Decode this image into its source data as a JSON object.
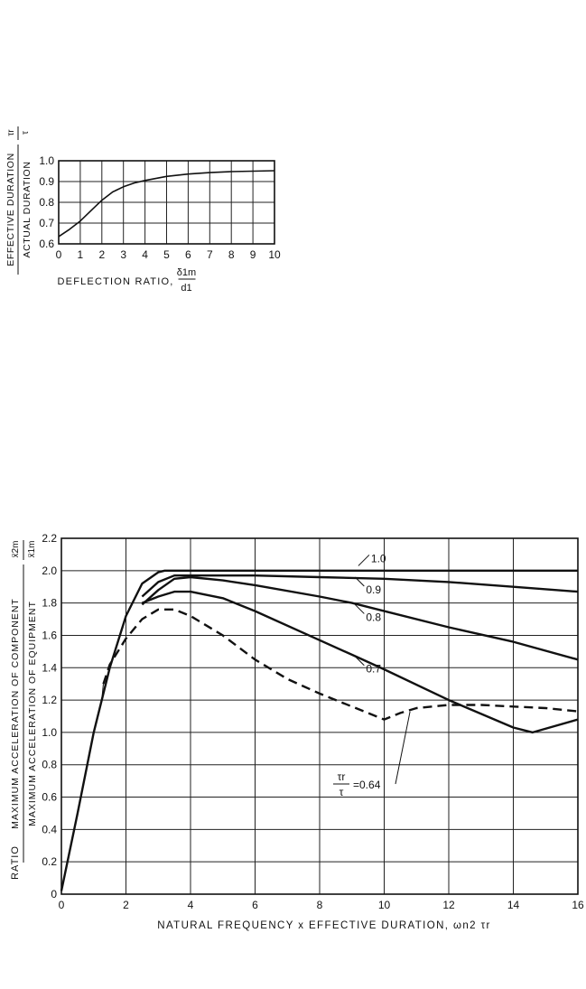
{
  "chart_data": [
    {
      "type": "line",
      "title": "",
      "xlabel": "DEFLECTION RATIO,",
      "xlabel_fraction": {
        "numerator": "δ1m",
        "denominator": "d1"
      },
      "ylabel_numerator": "EFFECTIVE DURATION",
      "ylabel_denominator": "ACTUAL DURATION",
      "ylabel_ratio": {
        "numerator": "τr",
        "denominator": "τ"
      },
      "xlim": [
        0,
        10
      ],
      "ylim": [
        0.6,
        1.0
      ],
      "x_ticks": [
        0,
        1,
        2,
        3,
        4,
        5,
        6,
        7,
        8,
        9,
        10
      ],
      "x_tick_labels": [
        "0",
        "1",
        "2",
        "3",
        "4",
        "5",
        "6",
        "7",
        "8",
        "9",
        "10"
      ],
      "y_ticks": [
        0.6,
        0.7,
        0.8,
        0.9,
        1.0
      ],
      "y_tick_labels": [
        "0.6",
        "0.7",
        "0.8",
        "0.9",
        "1.0"
      ],
      "grid": true,
      "series": [
        {
          "style": "solid",
          "x": [
            0,
            0.5,
            1,
            1.5,
            2,
            2.5,
            3,
            3.5,
            4,
            5,
            6,
            7,
            8,
            9,
            10
          ],
          "y": [
            0.635,
            0.67,
            0.71,
            0.76,
            0.81,
            0.85,
            0.875,
            0.893,
            0.905,
            0.925,
            0.936,
            0.943,
            0.948,
            0.95,
            0.952
          ]
        }
      ]
    },
    {
      "type": "line",
      "title": "",
      "xlabel": "NATURAL FREQUENCY x EFFECTIVE DURATION, ωn2 τr",
      "ylabel_prefix": "RATIO",
      "ylabel_numerator": "MAXIMUM ACCELERATION OF COMPONENT",
      "ylabel_denominator": "MAXIMUM ACCELERATION OF EQUIPMENT",
      "ylabel_ratio": {
        "numerator": "ẍ2m",
        "denominator": "ẍ1m"
      },
      "xlim": [
        0,
        16
      ],
      "ylim": [
        0,
        2.2
      ],
      "x_ticks": [
        0,
        2,
        4,
        6,
        8,
        10,
        12,
        14,
        16
      ],
      "x_tick_labels": [
        "0",
        "2",
        "4",
        "6",
        "8",
        "10",
        "12",
        "14",
        "16"
      ],
      "y_ticks": [
        0,
        0.2,
        0.4,
        0.6,
        0.8,
        1.0,
        1.2,
        1.4,
        1.6,
        1.8,
        2.0,
        2.2
      ],
      "y_tick_labels": [
        "0",
        "0.2",
        "0.4",
        "0.6",
        "0.8",
        "1.0",
        "1.2",
        "1.4",
        "1.6",
        "1.8",
        "2.0",
        "2.2"
      ],
      "grid": true,
      "series": [
        {
          "name": "1.0",
          "style": "solid",
          "x": [
            0,
            0.5,
            1,
            1.5,
            2,
            2.5,
            3,
            3.2,
            4,
            6,
            8,
            10,
            12,
            14,
            16
          ],
          "y": [
            0.02,
            0.5,
            1.0,
            1.4,
            1.72,
            1.92,
            1.99,
            2.0,
            2.0,
            2.0,
            2.0,
            2.0,
            2.0,
            2.0,
            2.0
          ],
          "label_at": [
            9.2,
            2.03
          ],
          "label_offset": [
            14,
            -8
          ]
        },
        {
          "name": "0.9",
          "style": "solid",
          "x": [
            2.5,
            3,
            3.5,
            4,
            6,
            8,
            10,
            12,
            14,
            16
          ],
          "y": [
            1.84,
            1.93,
            1.97,
            1.97,
            1.97,
            1.96,
            1.95,
            1.93,
            1.9,
            1.87
          ],
          "label_at": [
            9.1,
            1.96
          ],
          "label_offset": [
            12,
            14
          ]
        },
        {
          "name": "0.8",
          "style": "solid",
          "x": [
            2.5,
            3,
            3.5,
            4,
            5,
            6,
            8,
            9,
            10,
            12,
            14,
            16
          ],
          "y": [
            1.79,
            1.88,
            1.95,
            1.96,
            1.94,
            1.91,
            1.84,
            1.8,
            1.75,
            1.65,
            1.56,
            1.45
          ],
          "label_at": [
            9.1,
            1.79
          ],
          "label_offset": [
            12,
            14
          ]
        },
        {
          "name": "0.7",
          "style": "solid",
          "x": [
            2.5,
            3,
            3.5,
            4,
            5,
            6,
            8,
            9,
            10,
            12,
            14,
            14.6,
            16
          ],
          "y": [
            1.8,
            1.84,
            1.87,
            1.87,
            1.83,
            1.75,
            1.57,
            1.48,
            1.39,
            1.2,
            1.03,
            1.0,
            1.08
          ],
          "label_at": [
            9.1,
            1.47
          ],
          "label_offset": [
            12,
            14
          ]
        },
        {
          "name": "τr/τ = 0.64",
          "style": "dashed",
          "x": [
            1.3,
            1.5,
            2,
            2.5,
            3,
            3.5,
            4,
            5,
            6,
            7,
            8,
            9,
            10,
            10.5,
            11,
            12,
            13,
            14,
            15,
            16
          ],
          "y": [
            1.3,
            1.42,
            1.58,
            1.7,
            1.76,
            1.76,
            1.72,
            1.6,
            1.45,
            1.33,
            1.24,
            1.16,
            1.08,
            1.12,
            1.15,
            1.17,
            1.17,
            1.16,
            1.15,
            1.13
          ]
        }
      ]
    }
  ]
}
